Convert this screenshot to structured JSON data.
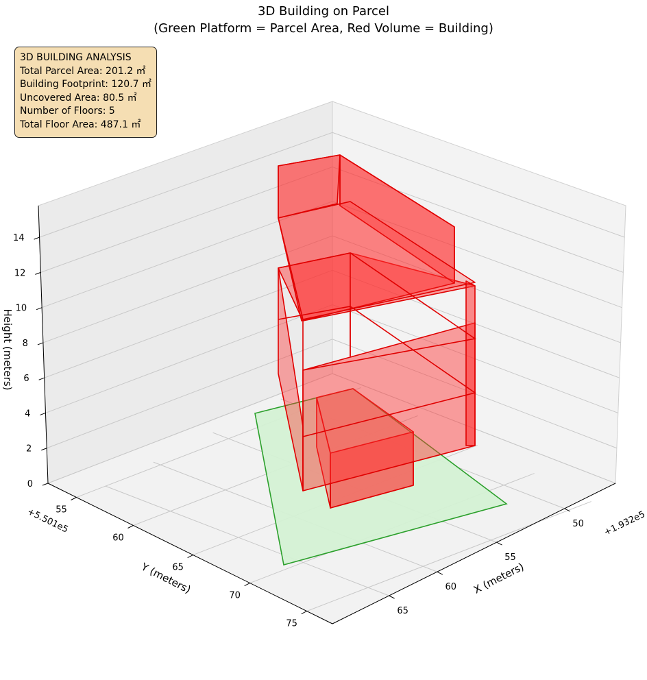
{
  "chart_data": {
    "type": "3d-surface",
    "title_lines": [
      "3D Building on Parcel",
      "(Green Platform = Parcel Area, Red Volume = Building)"
    ],
    "axes": {
      "x": {
        "label": "X (meters)",
        "offset_label": "+1.932e5",
        "ticks": [
          50,
          55,
          60,
          65
        ]
      },
      "y": {
        "label": "Y (meters)",
        "offset_label": "+5.501e5",
        "ticks": [
          55,
          60,
          65,
          70,
          75
        ]
      },
      "z": {
        "label": "Height (meters)",
        "ticks": [
          0,
          2,
          4,
          6,
          8,
          10,
          12,
          14
        ]
      }
    },
    "grid": true,
    "info_box": {
      "lines": [
        "3D BUILDING ANALYSIS",
        "Total Parcel Area: 201.2 ㎡",
        "Building Footprint: 120.7 ㎡",
        "Uncovered Area: 80.5 ㎡",
        "Number of Floors: 5",
        "Total Floor Area: 487.1 ㎡"
      ]
    },
    "parcel_color": "#2ca02c",
    "parcel_fill": "#d4f1d4",
    "building_color": "#e00000",
    "building_fill": "#ff3030"
  }
}
